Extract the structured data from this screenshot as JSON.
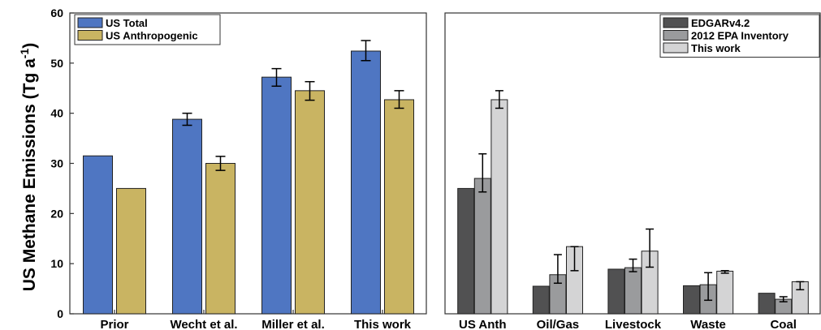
{
  "ylabel": {
    "main": "US Methane Emissions (Tg a",
    "sup": "-1",
    "close": ")"
  },
  "chart_data": [
    {
      "type": "bar",
      "panel": "left",
      "categories": [
        "Prior",
        "Wecht et al.",
        "Miller et al.",
        "This work"
      ],
      "ylim": [
        0,
        60
      ],
      "yticks": [
        0,
        10,
        20,
        30,
        40,
        50,
        60
      ],
      "legend_position": "top-left",
      "series": [
        {
          "name": "US Total",
          "color": "#4f76c2",
          "values": [
            31.5,
            38.8,
            47.2,
            52.4
          ],
          "err": [
            null,
            [
              37.6,
              40.0
            ],
            [
              45.4,
              48.9
            ],
            [
              50.5,
              54.5
            ]
          ]
        },
        {
          "name": "US Anthropogenic",
          "color": "#c9b462",
          "values": [
            25.0,
            30.0,
            44.5,
            42.7
          ],
          "err": [
            null,
            [
              28.6,
              31.4
            ],
            [
              42.6,
              46.3
            ],
            [
              41.0,
              44.5
            ]
          ]
        }
      ]
    },
    {
      "type": "bar",
      "panel": "right",
      "categories": [
        "US Anth",
        "Oil/Gas",
        "Livestock",
        "Waste",
        "Coal"
      ],
      "ylim": [
        0,
        60
      ],
      "legend_position": "top-right",
      "series": [
        {
          "name": "EDGARv4.2",
          "color": "#515152",
          "values": [
            25.0,
            5.5,
            8.9,
            5.6,
            4.1
          ],
          "err": [
            null,
            null,
            null,
            null,
            null
          ]
        },
        {
          "name": "2012 EPA Inventory",
          "color": "#9a9b9d",
          "values": [
            27.0,
            7.8,
            9.2,
            5.8,
            2.9
          ],
          "err": [
            [
              24.3,
              31.9
            ],
            [
              6.1,
              11.8
            ],
            [
              8.4,
              10.9
            ],
            [
              2.7,
              8.2
            ],
            [
              2.4,
              3.4
            ]
          ]
        },
        {
          "name": "This work",
          "color": "#d4d4d5",
          "values": [
            42.7,
            13.4,
            12.5,
            8.5,
            6.4
          ],
          "err": [
            [
              41.0,
              44.5
            ],
            [
              8.6,
              13.4
            ],
            [
              9.3,
              16.9
            ],
            [
              8.1,
              8.6
            ],
            [
              4.8,
              6.4
            ]
          ]
        }
      ]
    }
  ]
}
